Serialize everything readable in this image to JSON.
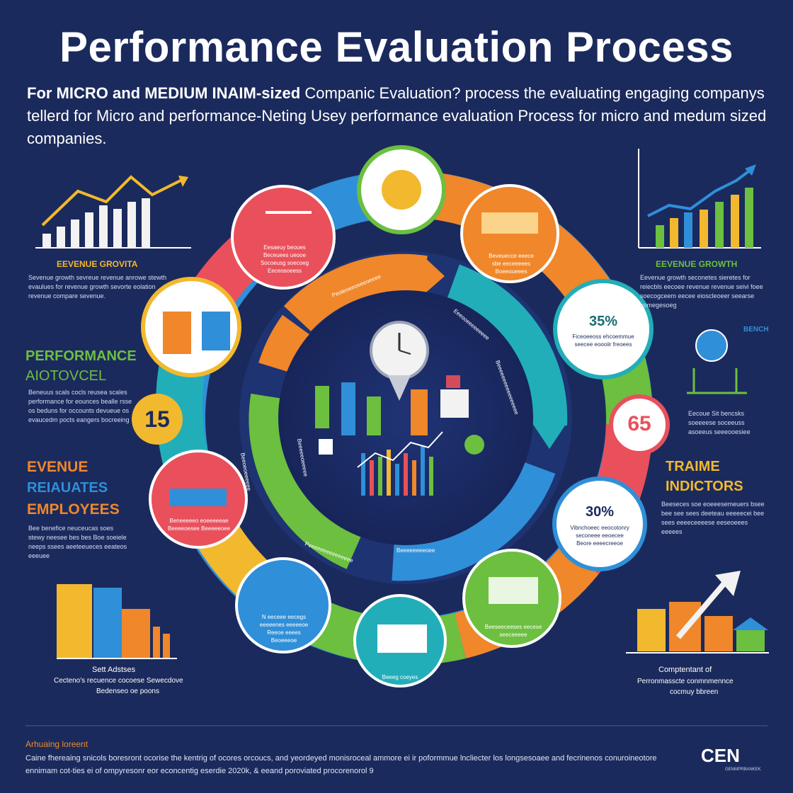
{
  "title": "Performance Evaluation Process",
  "intro": {
    "bold": "For MICRO and MEDIUM INAIM-sized",
    "rest": " Companic Evaluation? process the evaluating engaging companys tellerd for Micro and performance-Neting Usey performance evaluation Process for micro and medum sized companies."
  },
  "left": {
    "growth_label": "EEVENUE GROVITA",
    "growth_desc": "Sevenue growth sevreue revenue anrowe stewth evaulues for revenue growth sevorte eolation revenue compare sevenue.",
    "performance_label": "PERFORMANCE",
    "performance_sub": "AIOTOVCEL",
    "performance_desc": "Beneuus scals cocls reusea scales performance for eounces bealle rsse os beduns for occounts devueue os evaucedm pocts eangers bocreeing",
    "num15": "15",
    "evenue": "EVENUE",
    "reluates": "REIAUATES",
    "employees": "EMPLOYEES",
    "emp_desc": "Bee benefice neuceucas soes stewy neesee bes bes Boe soeiele neeps ssees aeeteeueces eeateos eeeuee",
    "chart_caption1": "Sett Adstses",
    "chart_caption2": "Cecteno's recuence cocoese Sewecdove",
    "chart_caption3": "Bedenseo oe poons"
  },
  "right": {
    "growth_label": "EEVENUE GROWTH",
    "growth_desc": "Eevenue growth seconetes sieretes for reiecbls eecoee revenue revenue seivi foee soecogceem eecee eioscleoeer seearse comegesoeg",
    "bench_label": "BENCH",
    "bench_desc": "Eecoue Sit bencsks soeeeese soceeuss asoeeus seeeooesiee",
    "num65": "65",
    "traine": "TRAIME",
    "indictors": "INDICTORS",
    "ind_desc": "Beeseces soe eoeeesemeuers bsee bee see sees deeteau eeeeecei bee sees eeeeceeeese eeseoeees eeeees",
    "caption1": "Comptentant of",
    "caption2": "Perronmasscte conmnmennce",
    "caption3": "cocmuy bbreen"
  },
  "circles": {
    "top_label": "Eesaeuy beoues\nBeceuees ueooe\nSocoeusg soecoeg\nEeceosoeess",
    "topright_label": "Beveuecce eeece\nsbe eeceeeees\nBoeeoueees",
    "pct35": "35%",
    "pct35_label": "Ficeoeeoss ehcoemmue\nseecee eoooiir freoees",
    "pct30": "30%",
    "pct30_label": "Vibnchoeec eeocotonry\nseconeee eeoecee\nBeore eeeecreeoe",
    "bottomright_label": "Beeseeceeses eecese\nseeceeeee",
    "bottom_label": "Beeeg coeyes",
    "bottomleft_label": "N eeceee eecegs\neeeeenes eeeeeoe\nReeoe eeees\nBeoeeeoe",
    "left_label": "Beneeeeeo eoeeeeeae\nBeeeeoesee Beeeeeoee"
  },
  "ring_labels": [
    "Peoteseeoeeeoeeee",
    "Eeeooeeeeeeeee",
    "Beeeeeeeeeeeeeeeee",
    "Beeeeeeeeoee",
    "Beeeeeoeeeee",
    "Beeoeoeeeeee",
    "Peeeeeeeeeeeeeee"
  ],
  "footer": {
    "title": "Arhuaing loreent",
    "text": "Caine fhereaing snicols boresront ocorise the kentrig of ocores orcoucs, and yeordeyed monisroceal ammore ei ir poformmue lncliecter los longsesoaee and fecrinenos conuroineotore ennimam cot-ties ei of ompyresonr eor econcentig eserdie 2020k, & eeand poroviated procorenorol 9",
    "highlight": "2020k"
  },
  "logo": {
    "name": "CEN",
    "sub": "GENMPRBANKEK"
  },
  "colors": {
    "background": "#1b2a5c",
    "red": "#e9505b",
    "orange": "#f0872a",
    "yellow": "#f2b92e",
    "green": "#6cbf3f",
    "blue": "#2f8fd8",
    "teal": "#22aeb8"
  }
}
